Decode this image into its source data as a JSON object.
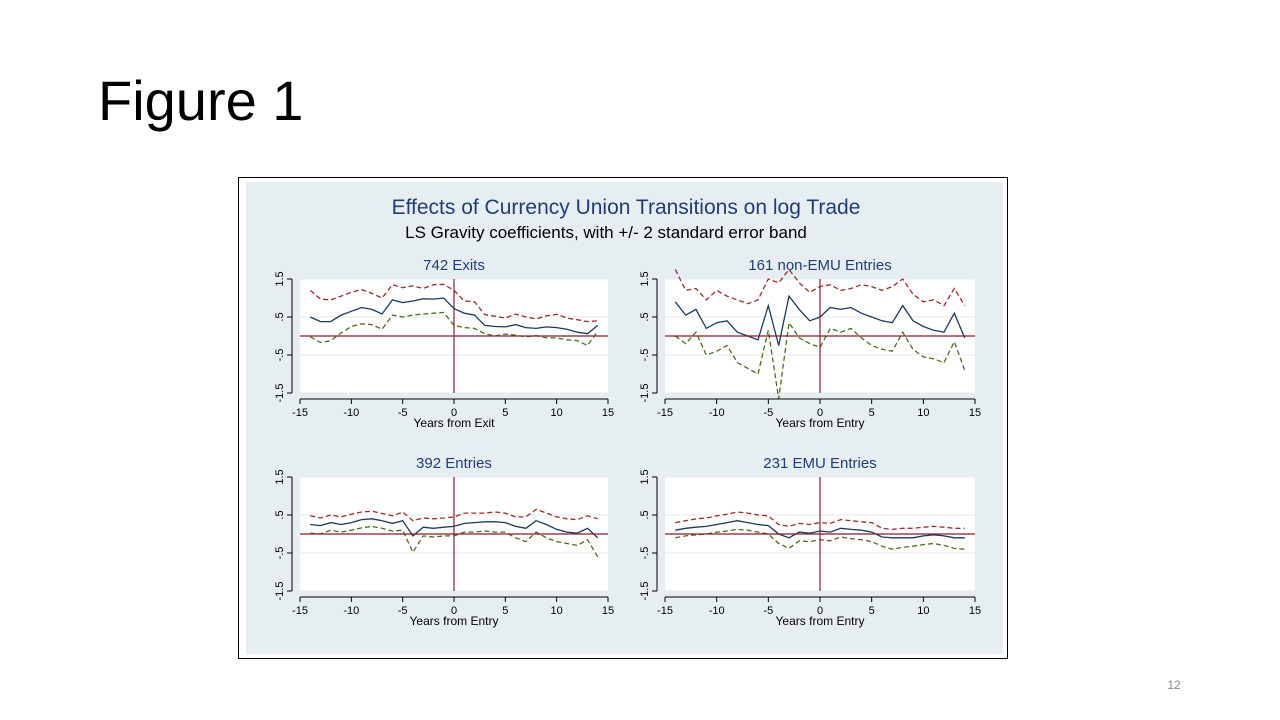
{
  "slide": {
    "title": "Figure 1",
    "page_number": "12"
  },
  "figure": {
    "title": "Effects of Currency Union Transitions on log Trade",
    "subtitle": "LS Gravity coefficients, with +/- 2 standard error band",
    "background_color": "#e6eef2",
    "colors": {
      "coef": "#1a3a5c",
      "upper": "#a02a2a",
      "lower": "#4a6e1e",
      "zero_line": "#8b1a2b",
      "event_line": "#8b1a3c"
    }
  },
  "chart_data": [
    {
      "type": "line",
      "title": "742 Exits",
      "xlabel": "Years from Exit",
      "xlim": [
        -15,
        15
      ],
      "ylim": [
        -1.5,
        1.5
      ],
      "xticks": [
        -15,
        -10,
        -5,
        0,
        5,
        10,
        15
      ],
      "xtick_labels": [
        "-15",
        "-10",
        "-5",
        "0",
        "5",
        "10",
        "15"
      ],
      "yticks": [
        -1.5,
        -0.5,
        0.5,
        1.5
      ],
      "ytick_labels": [
        "-1.5",
        "-.5",
        ".5",
        "1.5"
      ],
      "x": [
        -14,
        -13,
        -12,
        -11,
        -10,
        -9,
        -8,
        -7,
        -6,
        -5,
        -4,
        -3,
        -2,
        -1,
        0,
        1,
        2,
        3,
        4,
        5,
        6,
        7,
        8,
        9,
        10,
        11,
        12,
        13,
        14
      ],
      "series": [
        {
          "role": "upper",
          "values": [
            1.2,
            0.97,
            0.95,
            1.05,
            1.15,
            1.22,
            1.12,
            1.0,
            1.35,
            1.27,
            1.32,
            1.25,
            1.35,
            1.36,
            1.2,
            0.92,
            0.9,
            0.56,
            0.52,
            0.47,
            0.58,
            0.5,
            0.45,
            0.53,
            0.57,
            0.47,
            0.43,
            0.38,
            0.4
          ]
        },
        {
          "role": "coef",
          "values": [
            0.5,
            0.38,
            0.38,
            0.55,
            0.65,
            0.75,
            0.7,
            0.58,
            0.95,
            0.88,
            0.92,
            0.98,
            0.97,
            1.0,
            0.72,
            0.6,
            0.55,
            0.28,
            0.25,
            0.24,
            0.3,
            0.22,
            0.2,
            0.24,
            0.22,
            0.18,
            0.1,
            0.06,
            0.28
          ]
        },
        {
          "role": "lower",
          "values": [
            -0.02,
            -0.17,
            -0.12,
            0.08,
            0.25,
            0.32,
            0.3,
            0.18,
            0.55,
            0.5,
            0.55,
            0.58,
            0.6,
            0.62,
            0.28,
            0.22,
            0.2,
            0.06,
            0.0,
            0.05,
            0.02,
            -0.02,
            0.01,
            -0.05,
            -0.05,
            -0.1,
            -0.12,
            -0.25,
            0.12
          ]
        }
      ],
      "reference_lines": {
        "y": 0,
        "x": 0
      }
    },
    {
      "type": "line",
      "title": "161 non-EMU Entries",
      "xlabel": "Years from Entry",
      "xlim": [
        -15,
        15
      ],
      "ylim": [
        -1.5,
        1.5
      ],
      "xticks": [
        -15,
        -10,
        -5,
        0,
        5,
        10,
        15
      ],
      "xtick_labels": [
        "-15",
        "-10",
        "-5",
        "0",
        "5",
        "10",
        "15"
      ],
      "yticks": [
        -1.5,
        -0.5,
        0.5,
        1.5
      ],
      "ytick_labels": [
        "-1.5",
        "-.5",
        ".5",
        "1.5"
      ],
      "x": [
        -14,
        -13,
        -12,
        -11,
        -10,
        -9,
        -8,
        -7,
        -6,
        -5,
        -4,
        -3,
        -2,
        -1,
        0,
        1,
        2,
        3,
        4,
        5,
        6,
        7,
        8,
        9,
        10,
        11,
        12,
        13,
        14
      ],
      "series": [
        {
          "role": "upper",
          "values": [
            1.75,
            1.2,
            1.25,
            0.95,
            1.2,
            1.05,
            0.95,
            0.85,
            0.95,
            1.5,
            1.4,
            1.75,
            1.4,
            1.15,
            1.3,
            1.35,
            1.2,
            1.25,
            1.35,
            1.3,
            1.2,
            1.3,
            1.5,
            1.1,
            0.9,
            0.95,
            0.8,
            1.25,
            0.8
          ]
        },
        {
          "role": "coef",
          "values": [
            0.9,
            0.55,
            0.7,
            0.2,
            0.35,
            0.4,
            0.1,
            0.0,
            -0.1,
            0.8,
            -0.25,
            1.05,
            0.7,
            0.4,
            0.5,
            0.75,
            0.7,
            0.75,
            0.6,
            0.5,
            0.4,
            0.35,
            0.8,
            0.4,
            0.25,
            0.15,
            0.1,
            0.6,
            -0.05
          ]
        },
        {
          "role": "lower",
          "values": [
            0.0,
            -0.2,
            0.1,
            -0.5,
            -0.4,
            -0.25,
            -0.7,
            -0.85,
            -1.0,
            0.15,
            -1.65,
            0.35,
            -0.05,
            -0.2,
            -0.3,
            0.2,
            0.1,
            0.2,
            -0.05,
            -0.25,
            -0.35,
            -0.4,
            0.1,
            -0.35,
            -0.55,
            -0.6,
            -0.7,
            -0.15,
            -0.9
          ]
        }
      ],
      "reference_lines": {
        "y": 0,
        "x": 0
      }
    },
    {
      "type": "line",
      "title": "392 Entries",
      "xlabel": "Years from Entry",
      "xlim": [
        -15,
        15
      ],
      "ylim": [
        -1.5,
        1.5
      ],
      "xticks": [
        -15,
        -10,
        -5,
        0,
        5,
        10,
        15
      ],
      "xtick_labels": [
        "-15",
        "-10",
        "-5",
        "0",
        "5",
        "10",
        "15"
      ],
      "yticks": [
        -1.5,
        -0.5,
        0.5,
        1.5
      ],
      "ytick_labels": [
        "-1.5",
        "-.5",
        ".5",
        "1.5"
      ],
      "x": [
        -14,
        -13,
        -12,
        -11,
        -10,
        -9,
        -8,
        -7,
        -6,
        -5,
        -4,
        -3,
        -2,
        -1,
        0,
        1,
        2,
        3,
        4,
        5,
        6,
        7,
        8,
        9,
        10,
        11,
        12,
        13,
        14
      ],
      "series": [
        {
          "role": "upper",
          "values": [
            0.48,
            0.42,
            0.5,
            0.45,
            0.52,
            0.58,
            0.6,
            0.54,
            0.48,
            0.58,
            0.35,
            0.42,
            0.4,
            0.42,
            0.45,
            0.55,
            0.55,
            0.55,
            0.58,
            0.55,
            0.45,
            0.45,
            0.65,
            0.55,
            0.45,
            0.4,
            0.38,
            0.48,
            0.4
          ]
        },
        {
          "role": "coef",
          "values": [
            0.25,
            0.22,
            0.3,
            0.25,
            0.3,
            0.38,
            0.4,
            0.35,
            0.28,
            0.35,
            -0.05,
            0.18,
            0.15,
            0.18,
            0.2,
            0.28,
            0.3,
            0.32,
            0.32,
            0.3,
            0.2,
            0.15,
            0.35,
            0.25,
            0.12,
            0.05,
            0.02,
            0.15,
            -0.1
          ]
        },
        {
          "role": "lower",
          "values": [
            0.02,
            0.0,
            0.1,
            0.05,
            0.1,
            0.16,
            0.2,
            0.15,
            0.08,
            0.1,
            -0.48,
            -0.05,
            -0.08,
            -0.05,
            -0.05,
            0.05,
            0.05,
            0.08,
            0.05,
            0.05,
            -0.1,
            -0.2,
            0.05,
            -0.1,
            -0.2,
            -0.25,
            -0.3,
            -0.15,
            -0.6
          ]
        }
      ],
      "reference_lines": {
        "y": 0,
        "x": 0
      }
    },
    {
      "type": "line",
      "title": "231 EMU Entries",
      "xlabel": "Years from Entry",
      "xlim": [
        -15,
        15
      ],
      "ylim": [
        -1.5,
        1.5
      ],
      "xticks": [
        -15,
        -10,
        -5,
        0,
        5,
        10,
        15
      ],
      "xtick_labels": [
        "-15",
        "-10",
        "-5",
        "0",
        "5",
        "10",
        "15"
      ],
      "yticks": [
        -1.5,
        -0.5,
        0.5,
        1.5
      ],
      "ytick_labels": [
        "-1.5",
        "-.5",
        ".5",
        "1.5"
      ],
      "x": [
        -14,
        -13,
        -12,
        -11,
        -10,
        -9,
        -8,
        -7,
        -6,
        -5,
        -4,
        -3,
        -2,
        -1,
        0,
        1,
        2,
        3,
        4,
        5,
        6,
        7,
        8,
        9,
        10,
        11,
        12,
        13,
        14
      ],
      "series": [
        {
          "role": "upper",
          "values": [
            0.3,
            0.35,
            0.4,
            0.42,
            0.48,
            0.52,
            0.58,
            0.55,
            0.5,
            0.48,
            0.25,
            0.2,
            0.28,
            0.25,
            0.3,
            0.28,
            0.38,
            0.35,
            0.32,
            0.3,
            0.15,
            0.12,
            0.15,
            0.15,
            0.18,
            0.2,
            0.18,
            0.15,
            0.15
          ]
        },
        {
          "role": "coef",
          "values": [
            0.1,
            0.15,
            0.18,
            0.2,
            0.25,
            0.3,
            0.35,
            0.3,
            0.25,
            0.22,
            0.0,
            -0.1,
            0.05,
            0.02,
            0.08,
            0.05,
            0.15,
            0.12,
            0.1,
            0.05,
            -0.08,
            -0.1,
            -0.1,
            -0.1,
            -0.05,
            -0.02,
            -0.05,
            -0.1,
            -0.1
          ]
        },
        {
          "role": "lower",
          "values": [
            -0.1,
            -0.05,
            -0.02,
            0.0,
            0.05,
            0.08,
            0.12,
            0.1,
            0.05,
            0.0,
            -0.25,
            -0.38,
            -0.18,
            -0.2,
            -0.15,
            -0.18,
            -0.08,
            -0.12,
            -0.15,
            -0.2,
            -0.32,
            -0.4,
            -0.35,
            -0.32,
            -0.28,
            -0.25,
            -0.3,
            -0.38,
            -0.4
          ]
        }
      ],
      "reference_lines": {
        "y": 0,
        "x": 0
      }
    }
  ]
}
